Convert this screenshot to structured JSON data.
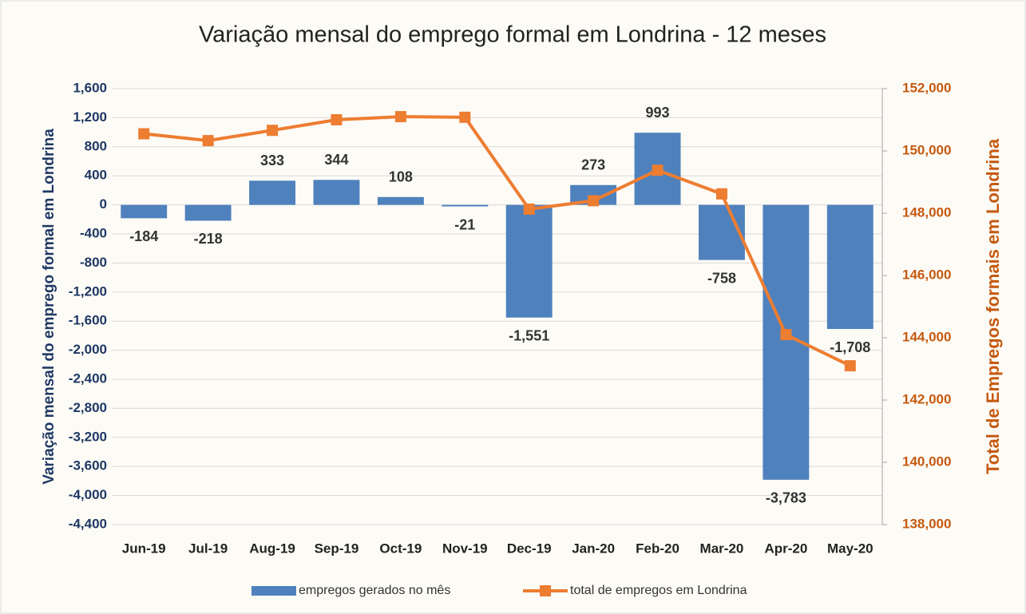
{
  "chart_data": {
    "type": "bar_line",
    "title": "Variação mensal do emprego formal em Londrina - 12 meses",
    "y_label": "Variação mensal do emprego formal em Londrina",
    "y2_label": "Total de Empregos formais em Londrina",
    "categories": [
      "Jun-19",
      "Jul-19",
      "Aug-19",
      "Sep-19",
      "Oct-19",
      "Nov-19",
      "Dec-19",
      "Jan-20",
      "Feb-20",
      "Mar-20",
      "Apr-20",
      "May-20"
    ],
    "series": [
      {
        "name": "empregos gerados no mês",
        "type": "bar",
        "color": "#4f81bd",
        "values": [
          -184,
          -218,
          333,
          344,
          108,
          -21,
          -1551,
          273,
          993,
          -758,
          -3783,
          -1708
        ],
        "value_labels": [
          "-184",
          "-218",
          "333",
          "344",
          "108",
          "-21",
          "-1,551",
          "273",
          "993",
          "-758",
          "-3,783",
          "-1,708"
        ]
      },
      {
        "name": "total de empregos em Londrina",
        "type": "line",
        "axis": "y2",
        "color": "#ed7d31",
        "values": [
          150550,
          150330,
          150660,
          151000,
          151100,
          151080,
          148130,
          148400,
          149380,
          148620,
          144100,
          143100
        ]
      }
    ],
    "ylim": [
      -4400,
      1600
    ],
    "yticks": [
      {
        "value": -4400,
        "label": "-4,400"
      },
      {
        "value": -4000,
        "label": "-4,000"
      },
      {
        "value": -3600,
        "label": "-3,600"
      },
      {
        "value": -3200,
        "label": "-3,200"
      },
      {
        "value": -2800,
        "label": "-2,800"
      },
      {
        "value": -2400,
        "label": "-2,400"
      },
      {
        "value": -2000,
        "label": "-2,000"
      },
      {
        "value": -1600,
        "label": "-1,600"
      },
      {
        "value": -1200,
        "label": "-1,200"
      },
      -800,
      -400,
      0,
      400,
      800,
      {
        "value": 1200,
        "label": "1,200"
      },
      {
        "value": 1600,
        "label": "1,600"
      }
    ],
    "y2lim": [
      138000,
      152000
    ],
    "y2ticks": [
      {
        "value": 138000,
        "label": "138,000"
      },
      {
        "value": 140000,
        "label": "140,000"
      },
      {
        "value": 142000,
        "label": "142,000"
      },
      {
        "value": 144000,
        "label": "144,000"
      },
      {
        "value": 146000,
        "label": "146,000"
      },
      {
        "value": 148000,
        "label": "148,000"
      },
      {
        "value": 150000,
        "label": "150,000"
      },
      {
        "value": 152000,
        "label": "152,000"
      }
    ],
    "grid": true
  }
}
